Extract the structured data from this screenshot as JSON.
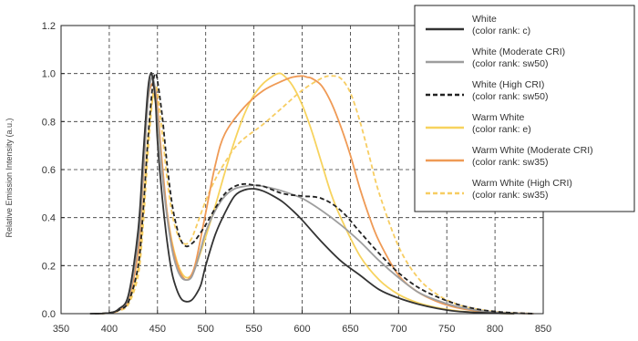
{
  "chart_data": {
    "type": "line",
    "title": "",
    "xlabel": "",
    "ylabel": "Relative Emission Intensity (a.u.)",
    "xlim": [
      350,
      850
    ],
    "ylim": [
      0,
      1.2
    ],
    "xticks": [
      "350",
      "400",
      "450",
      "500",
      "550",
      "600",
      "650",
      "700",
      "750",
      "800",
      "850"
    ],
    "yticks": [
      "0.0",
      "0.2",
      "0.4",
      "0.6",
      "0.8",
      "1.0",
      "1.2"
    ],
    "grid": true,
    "legend_position": "top-right",
    "series": [
      {
        "name": "White",
        "subname": "(color rank: c)",
        "color": "#333333",
        "dash": "solid",
        "x": [
          380,
          400,
          410,
          420,
          430,
          435,
          440,
          443,
          445,
          448,
          450,
          455,
          460,
          465,
          470,
          475,
          480,
          485,
          490,
          495,
          500,
          510,
          520,
          530,
          540,
          550,
          560,
          570,
          580,
          590,
          600,
          620,
          640,
          660,
          680,
          700,
          720,
          740,
          760,
          780,
          800,
          820
        ],
        "y": [
          0,
          0.003,
          0.02,
          0.08,
          0.35,
          0.65,
          0.93,
          1.0,
          0.98,
          0.88,
          0.72,
          0.48,
          0.3,
          0.17,
          0.1,
          0.06,
          0.05,
          0.055,
          0.08,
          0.12,
          0.2,
          0.33,
          0.42,
          0.49,
          0.515,
          0.52,
          0.51,
          0.49,
          0.465,
          0.43,
          0.39,
          0.3,
          0.22,
          0.16,
          0.1,
          0.065,
          0.04,
          0.022,
          0.01,
          0.005,
          0.002,
          0
        ]
      },
      {
        "name": "White (Moderate CRI)",
        "subname": "(color rank: sw50)",
        "color": "#9e9e9e",
        "dash": "solid",
        "x": [
          380,
          400,
          410,
          420,
          430,
          435,
          440,
          443,
          445,
          447,
          450,
          455,
          460,
          465,
          470,
          475,
          480,
          485,
          490,
          495,
          500,
          510,
          520,
          530,
          540,
          550,
          560,
          580,
          600,
          620,
          640,
          660,
          680,
          700,
          720,
          740,
          760,
          780,
          800,
          820,
          840
        ],
        "y": [
          0,
          0.003,
          0.02,
          0.07,
          0.3,
          0.58,
          0.88,
          0.97,
          0.98,
          0.95,
          0.82,
          0.58,
          0.4,
          0.27,
          0.19,
          0.15,
          0.14,
          0.15,
          0.2,
          0.27,
          0.34,
          0.43,
          0.49,
          0.52,
          0.53,
          0.535,
          0.53,
          0.51,
          0.48,
          0.43,
          0.37,
          0.3,
          0.22,
          0.15,
          0.09,
          0.055,
          0.03,
          0.015,
          0.006,
          0.002,
          0
        ]
      },
      {
        "name": "White (High CRI)",
        "subname": "(color rank: sw50)",
        "color": "#222222",
        "dash": "dashed",
        "x": [
          385,
          400,
          410,
          420,
          430,
          435,
          440,
          445,
          448,
          450,
          455,
          460,
          465,
          470,
          475,
          480,
          485,
          490,
          500,
          510,
          520,
          530,
          540,
          550,
          560,
          580,
          600,
          620,
          640,
          660,
          680,
          700,
          720,
          740,
          760,
          780,
          800,
          820,
          840
        ],
        "y": [
          0,
          0.003,
          0.015,
          0.05,
          0.2,
          0.42,
          0.72,
          0.95,
          1.0,
          0.97,
          0.82,
          0.62,
          0.46,
          0.36,
          0.3,
          0.28,
          0.29,
          0.31,
          0.37,
          0.44,
          0.5,
          0.53,
          0.54,
          0.535,
          0.53,
          0.5,
          0.49,
          0.48,
          0.43,
          0.34,
          0.25,
          0.17,
          0.11,
          0.07,
          0.04,
          0.02,
          0.009,
          0.003,
          0
        ]
      },
      {
        "name": "Warm White",
        "subname": "(color rank: e)",
        "color": "#f7d35e",
        "dash": "solid",
        "x": [
          390,
          400,
          410,
          420,
          430,
          435,
          440,
          445,
          448,
          450,
          455,
          460,
          465,
          470,
          475,
          480,
          485,
          490,
          500,
          510,
          520,
          530,
          540,
          550,
          560,
          570,
          575,
          580,
          590,
          600,
          610,
          620,
          630,
          640,
          660,
          680,
          700,
          720,
          740,
          760,
          780,
          800,
          820
        ],
        "y": [
          0,
          0.003,
          0.015,
          0.05,
          0.19,
          0.42,
          0.72,
          0.9,
          0.88,
          0.8,
          0.6,
          0.42,
          0.3,
          0.22,
          0.17,
          0.15,
          0.16,
          0.2,
          0.32,
          0.45,
          0.59,
          0.72,
          0.83,
          0.91,
          0.96,
          0.99,
          1.0,
          0.995,
          0.95,
          0.87,
          0.76,
          0.63,
          0.5,
          0.4,
          0.24,
          0.14,
          0.08,
          0.045,
          0.025,
          0.012,
          0.005,
          0.002,
          0
        ]
      },
      {
        "name": "Warm White (Moderate CRI)",
        "subname": "(color rank: sw35)",
        "color": "#ef9a55",
        "dash": "solid",
        "x": [
          385,
          400,
          410,
          420,
          430,
          435,
          440,
          445,
          448,
          450,
          455,
          460,
          465,
          470,
          475,
          480,
          485,
          490,
          500,
          510,
          520,
          540,
          560,
          580,
          590,
          600,
          605,
          610,
          620,
          630,
          640,
          650,
          660,
          670,
          680,
          700,
          720,
          740,
          760,
          780,
          800,
          820,
          840
        ],
        "y": [
          0,
          0.003,
          0.015,
          0.06,
          0.26,
          0.55,
          0.88,
          0.96,
          0.93,
          0.86,
          0.62,
          0.42,
          0.29,
          0.21,
          0.16,
          0.14,
          0.16,
          0.22,
          0.42,
          0.62,
          0.75,
          0.86,
          0.93,
          0.97,
          0.985,
          0.99,
          0.985,
          0.98,
          0.95,
          0.88,
          0.78,
          0.66,
          0.52,
          0.4,
          0.3,
          0.16,
          0.09,
          0.05,
          0.025,
          0.012,
          0.005,
          0.002,
          0
        ]
      },
      {
        "name": "Warm White (High CRI)",
        "subname": "(color rank: sw35)",
        "color": "#f7cd62",
        "dash": "dashed",
        "x": [
          390,
          400,
          410,
          420,
          430,
          435,
          440,
          445,
          448,
          450,
          455,
          460,
          465,
          470,
          475,
          480,
          485,
          490,
          500,
          510,
          520,
          530,
          540,
          550,
          560,
          580,
          600,
          620,
          630,
          640,
          650,
          660,
          670,
          680,
          700,
          720,
          740,
          760,
          780,
          800,
          820,
          840
        ],
        "y": [
          0,
          0.003,
          0.012,
          0.04,
          0.16,
          0.36,
          0.66,
          0.9,
          0.95,
          0.92,
          0.75,
          0.56,
          0.42,
          0.34,
          0.3,
          0.29,
          0.31,
          0.36,
          0.47,
          0.56,
          0.63,
          0.69,
          0.73,
          0.76,
          0.79,
          0.86,
          0.93,
          0.98,
          0.99,
          0.98,
          0.92,
          0.8,
          0.65,
          0.5,
          0.28,
          0.15,
          0.08,
          0.04,
          0.02,
          0.008,
          0.003,
          0
        ]
      }
    ]
  }
}
